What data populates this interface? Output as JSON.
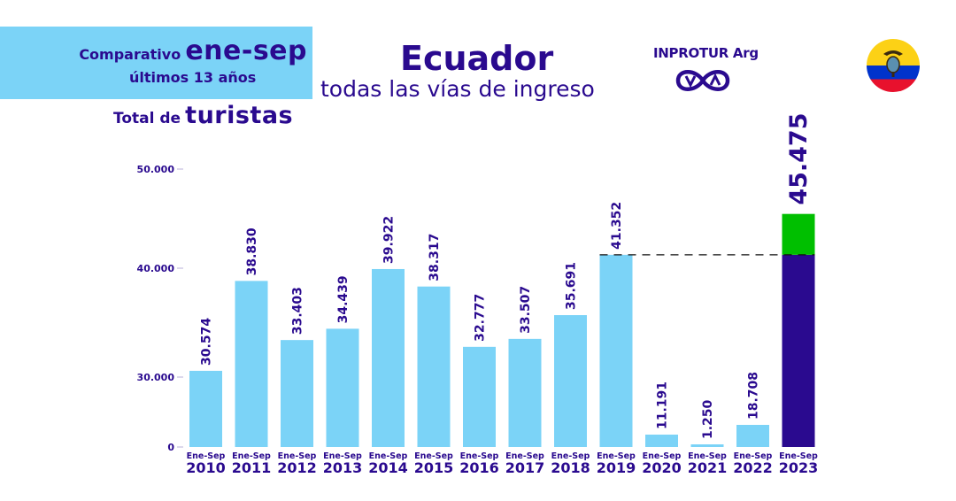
{
  "header": {
    "comparativo_label": "Comparativo",
    "period_label": "ene-sep",
    "years_label": "últimos 13 años",
    "total_label": "Total de",
    "metric_label": "turistas",
    "title": "Ecuador",
    "subtitle": "todas las vías de ingreso",
    "brand": "INPROTUR Arg",
    "logo_icon": "inprotur-va-logo-icon",
    "flag_icon": "ecuador-flag-icon"
  },
  "colors": {
    "text": "#2a0a8f",
    "bar": "#7bd3f7",
    "highlight_bar": "#2a0a8f",
    "increase_segment": "#00bf00",
    "header_box": "#7bd3f7",
    "flag_yellow": "#fcd116",
    "flag_blue": "#0033cc",
    "flag_red": "#e8112d"
  },
  "chart_data": {
    "type": "bar",
    "title": "Ecuador — todas las vías de ingreso",
    "subtitle": "Comparativo ene-sep, últimos 13 años — Total de turistas",
    "xlabel": "",
    "ylabel": "",
    "ylim": [
      0,
      50000
    ],
    "y_ticks": [
      0,
      30000,
      40000,
      50000
    ],
    "y_tick_labels": [
      "0",
      "30.000",
      "40.000",
      "50.000"
    ],
    "y_axis_note": "broken scale between 0 and 30.000",
    "grid": false,
    "legend": "none",
    "category_prefix": "Ene-Sep",
    "categories": [
      "2010",
      "2011",
      "2012",
      "2013",
      "2014",
      "2015",
      "2016",
      "2017",
      "2018",
      "2019",
      "2020",
      "2021",
      "2022",
      "2023"
    ],
    "values": [
      30574,
      38830,
      33403,
      34439,
      39922,
      38317,
      32777,
      33507,
      35691,
      41352,
      11191,
      1250,
      18708,
      45475
    ],
    "value_labels": [
      "30.574",
      "38.830",
      "33.403",
      "34.439",
      "39.922",
      "38.317",
      "32.777",
      "33.507",
      "35.691",
      "41.352",
      "11.191",
      "1.250",
      "18.708",
      "45.475"
    ],
    "highlight_category": "2023",
    "reference_line": {
      "value": 41352,
      "style": "dashed",
      "from_category": "2019",
      "to_category": "2023"
    },
    "highlight_split": {
      "base_value": 41352,
      "increase_value": 4123
    }
  }
}
